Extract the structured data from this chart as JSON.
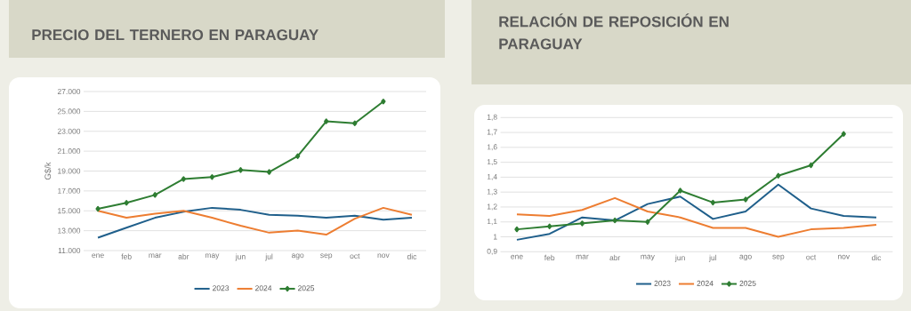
{
  "chart_data": [
    {
      "type": "line",
      "title": "PRECIO DEL TERNERO EN PARAGUAY",
      "ylabel": "G$/k",
      "categories": [
        "ene",
        "feb",
        "mar",
        "abr",
        "may",
        "jun",
        "jul",
        "ago",
        "sep",
        "oct",
        "nov",
        "dic"
      ],
      "series": [
        {
          "name": "2023",
          "color": "#1f5f8b",
          "marker": "none",
          "values": [
            12300,
            13300,
            14300,
            14900,
            15300,
            15100,
            14600,
            14500,
            14300,
            14500,
            14100,
            14300
          ]
        },
        {
          "name": "2024",
          "color": "#ed7d31",
          "marker": "none",
          "values": [
            15000,
            14300,
            14700,
            15000,
            14300,
            13500,
            12800,
            13000,
            12600,
            14200,
            15300,
            14600
          ]
        },
        {
          "name": "2025",
          "color": "#2e7d32",
          "marker": "diamond",
          "values": [
            15200,
            15800,
            16600,
            18200,
            18400,
            19100,
            18900,
            20500,
            24000,
            23800,
            26000,
            null
          ]
        }
      ],
      "ylim": [
        11000,
        27000
      ],
      "yticks": [
        {
          "value": 11000,
          "label": "11.000"
        },
        {
          "value": 13000,
          "label": "13.000"
        },
        {
          "value": 15000,
          "label": "15.000"
        },
        {
          "value": 17000,
          "label": "17.000"
        },
        {
          "value": 19000,
          "label": "19.000"
        },
        {
          "value": 21000,
          "label": "21.000"
        },
        {
          "value": 23000,
          "label": "23.000"
        },
        {
          "value": 25000,
          "label": "25.000"
        },
        {
          "value": 27000,
          "label": "27.000"
        }
      ],
      "grid": "y",
      "legend": "bottom"
    },
    {
      "type": "line",
      "title": "RELACIÓN DE REPOSICIÓN EN PARAGUAY",
      "categories": [
        "ene",
        "feb",
        "mar",
        "abr",
        "may",
        "jun",
        "jul",
        "ago",
        "sep",
        "oct",
        "nov",
        "dic"
      ],
      "series": [
        {
          "name": "2023",
          "color": "#1f5f8b",
          "marker": "none",
          "values": [
            0.98,
            1.02,
            1.13,
            1.11,
            1.22,
            1.27,
            1.12,
            1.17,
            1.35,
            1.19,
            1.14,
            1.13
          ]
        },
        {
          "name": "2024",
          "color": "#ed7d31",
          "marker": "none",
          "values": [
            1.15,
            1.14,
            1.18,
            1.26,
            1.17,
            1.13,
            1.06,
            1.06,
            1.0,
            1.05,
            1.06,
            1.08
          ]
        },
        {
          "name": "2025",
          "color": "#2e7d32",
          "marker": "diamond",
          "values": [
            1.05,
            1.07,
            1.09,
            1.11,
            1.1,
            1.31,
            1.23,
            1.25,
            1.41,
            1.48,
            1.69,
            null
          ]
        }
      ],
      "ylim": [
        0.9,
        1.8
      ],
      "yticks": [
        {
          "value": 0.9,
          "label": "0,9"
        },
        1,
        {
          "value": 1.1,
          "label": "1,1"
        },
        {
          "value": 1.2,
          "label": "1,2"
        },
        {
          "value": 1.3,
          "label": "1,3"
        },
        {
          "value": 1.4,
          "label": "1,4"
        },
        {
          "value": 1.5,
          "label": "1,5"
        },
        {
          "value": 1.6,
          "label": "1,6"
        },
        {
          "value": 1.7,
          "label": "1,7"
        },
        {
          "value": 1.8,
          "label": "1,8"
        }
      ],
      "grid": "y",
      "legend": "bottom"
    }
  ]
}
